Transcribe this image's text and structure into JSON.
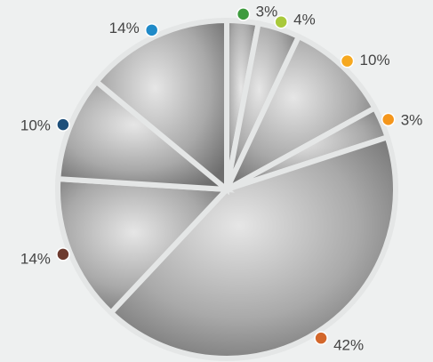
{
  "chart_data": {
    "type": "pie",
    "values": [
      3,
      4,
      10,
      3,
      42,
      14,
      10,
      14
    ],
    "value_labels": [
      "3%",
      "4%",
      "10%",
      "3%",
      "42%",
      "14%",
      "10%",
      "14%"
    ],
    "colors": [
      "#3e9b3e",
      "#a9c93b",
      "#f6a81f",
      "#f4961c",
      "#d3672b",
      "#6d3b2f",
      "#1e4f7a",
      "#1f8ac8"
    ]
  }
}
